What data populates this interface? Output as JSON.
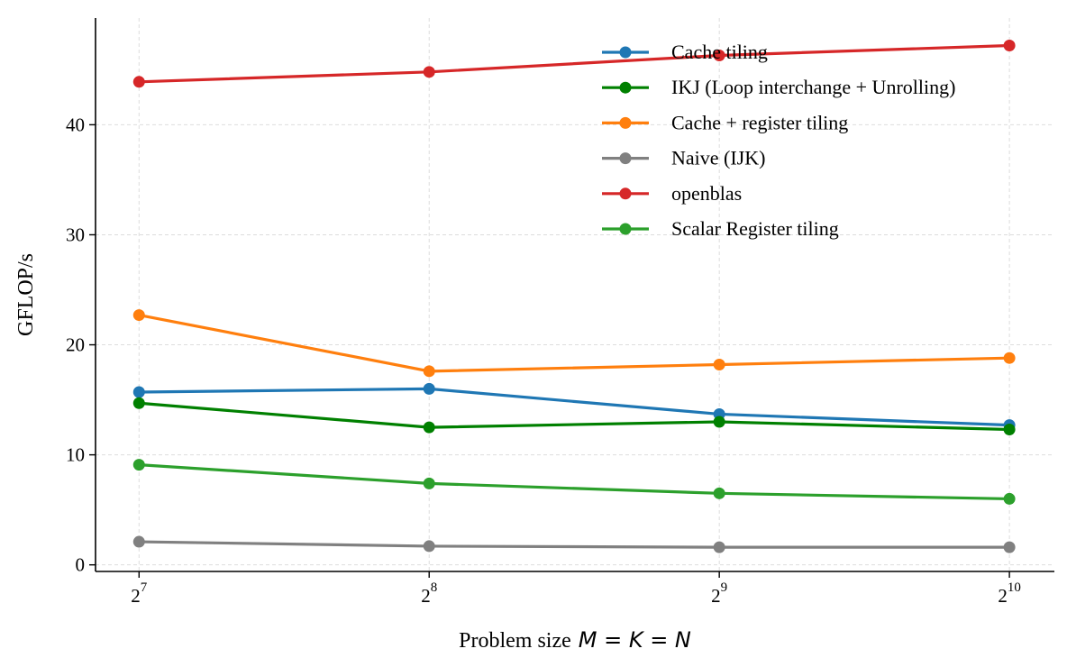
{
  "chart_data": {
    "type": "line",
    "title": "",
    "xlabel": "Problem size",
    "xlabel_math": "M = K = N",
    "ylabel": "GFLOP/s",
    "x_scale": "log2",
    "x": [
      128,
      256,
      512,
      1024
    ],
    "x_tick_base": "2",
    "x_tick_exponents": [
      "7",
      "8",
      "9",
      "10"
    ],
    "y_ticks": [
      "0",
      "10",
      "20",
      "30",
      "40"
    ],
    "ylim": [
      -0.6,
      49.7
    ],
    "grid": true,
    "legend_position": "top-right",
    "series": [
      {
        "name": "Cache tiling",
        "color": "#1f77b4",
        "values": [
          15.7,
          16.0,
          13.7,
          12.7
        ]
      },
      {
        "name": "IKJ (Loop interchange + Unrolling)",
        "color": "#008000",
        "values": [
          14.7,
          12.5,
          13.0,
          12.3
        ]
      },
      {
        "name": "Cache + register tiling",
        "color": "#ff7f0e",
        "values": [
          22.7,
          17.6,
          18.2,
          18.8
        ]
      },
      {
        "name": "Naive (IJK)",
        "color": "#808080",
        "values": [
          2.1,
          1.7,
          1.6,
          1.6
        ]
      },
      {
        "name": "openblas",
        "color": "#d62728",
        "values": [
          43.9,
          44.8,
          46.3,
          47.2
        ]
      },
      {
        "name": "Scalar Register tiling",
        "color": "#2ca02c",
        "values": [
          9.1,
          7.4,
          6.5,
          6.0
        ]
      }
    ]
  }
}
